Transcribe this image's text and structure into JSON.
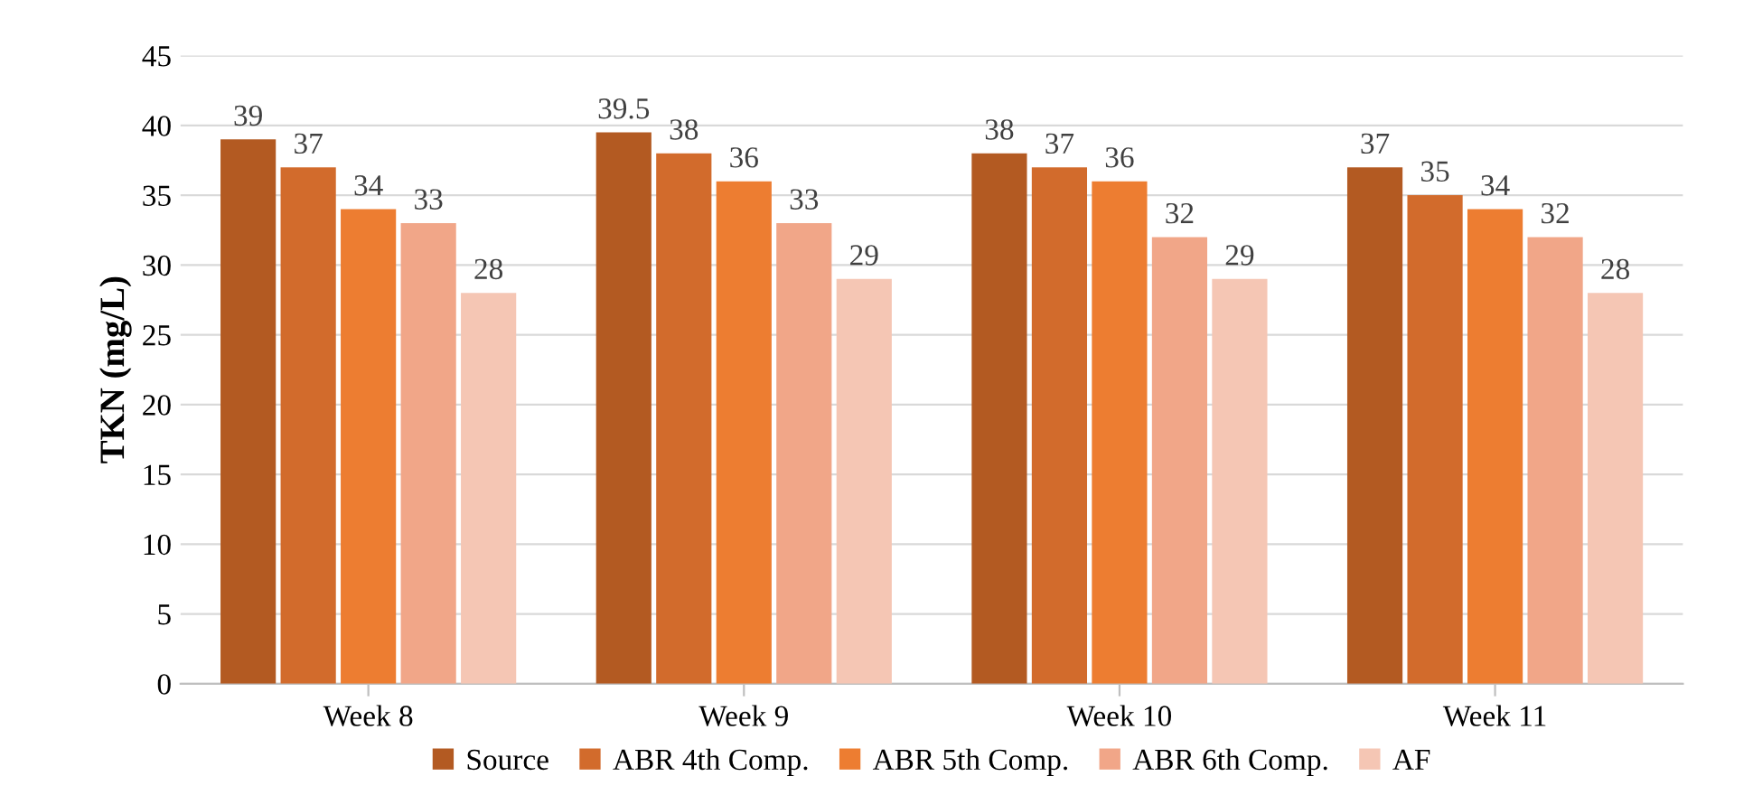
{
  "chart_data": {
    "type": "bar",
    "ylabel": "TKN (mg/L)",
    "categories": [
      "Week 8",
      "Week 9",
      "Week 10",
      "Week 11"
    ],
    "series": [
      {
        "name": "Source",
        "color": "#b35a22",
        "values": [
          39,
          39.5,
          38,
          37
        ]
      },
      {
        "name": "ABR 4th Comp.",
        "color": "#d26b2c",
        "values": [
          37,
          38,
          37,
          35
        ]
      },
      {
        "name": "ABR 5th Comp.",
        "color": "#ed7d31",
        "values": [
          34,
          36,
          36,
          34
        ]
      },
      {
        "name": "ABR 6th Comp.",
        "color": "#f1a688",
        "values": [
          33,
          33,
          32,
          32
        ]
      },
      {
        "name": "AF",
        "color": "#f5c6b4",
        "values": [
          28,
          29,
          29,
          28
        ]
      }
    ],
    "ylim": [
      0,
      45
    ],
    "yticks": [
      0,
      5,
      10,
      15,
      20,
      25,
      30,
      35,
      40,
      45
    ],
    "grid": "y",
    "legend": "bottom",
    "data_labels": true
  }
}
